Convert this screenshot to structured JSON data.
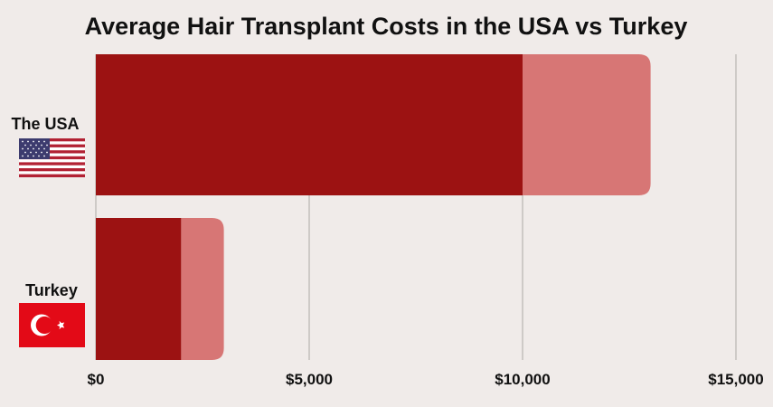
{
  "chart_data": {
    "type": "bar",
    "orientation": "horizontal",
    "title": "Average Hair Transplant Costs in the USA vs Turkey",
    "categories": [
      "The USA",
      "Turkey"
    ],
    "category_icons": [
      "usa-flag-icon",
      "turkey-flag-icon"
    ],
    "series": [
      {
        "values": [
          10000,
          2000
        ],
        "color": "#9c1212"
      },
      {
        "values": [
          3000,
          1000
        ],
        "color": "#d77675"
      }
    ],
    "range_totals": [
      13000,
      3000
    ],
    "xlim": [
      0,
      15000
    ],
    "xticks": [
      0,
      5000,
      10000,
      15000
    ],
    "xtick_labels": [
      "$0",
      "$5,000",
      "$10,000",
      "$15,000"
    ],
    "grid": true,
    "legend": "none"
  }
}
